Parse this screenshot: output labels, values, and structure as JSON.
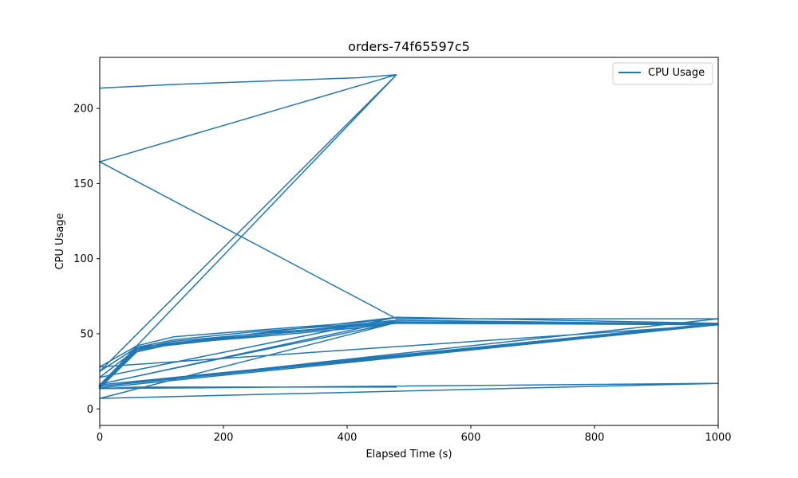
{
  "chart_data": {
    "type": "line",
    "title": "orders-74f65597c5",
    "xlabel": "Elapsed Time (s)",
    "ylabel": "CPU Usage",
    "xlim": [
      0,
      1000
    ],
    "ylim": [
      -11,
      234
    ],
    "xticks": [
      0,
      200,
      400,
      600,
      800,
      1000
    ],
    "yticks": [
      0,
      50,
      100,
      150,
      200
    ],
    "grid": false,
    "legend_position": "top-right",
    "colors": {
      "series": "#1f77b4",
      "axes": "#000000",
      "background": "#ffffff",
      "legend_border": "#cccccc"
    },
    "series": [
      {
        "name": "CPU Usage",
        "x": [
          0,
          120,
          420,
          480,
          0,
          480,
          1000,
          0,
          60,
          120,
          240,
          420,
          480,
          1000,
          0,
          60,
          120,
          240,
          420,
          480,
          1000,
          0,
          60,
          120,
          240,
          420,
          480,
          1000,
          0,
          60,
          120,
          240,
          420,
          480,
          1000,
          0,
          60,
          120,
          240,
          420,
          480,
          1000,
          0,
          60,
          480,
          0,
          60,
          480,
          0,
          60,
          480,
          0,
          120,
          480,
          0,
          1000,
          0,
          60,
          480
        ],
        "y": [
          213.5,
          216,
          220.5,
          222.5,
          164.5,
          60,
          60,
          15,
          42,
          48,
          52,
          57.5,
          61,
          57,
          16,
          41,
          46,
          51,
          56.5,
          59,
          56.5,
          16,
          40,
          45,
          49.5,
          55.5,
          58,
          56.5,
          15,
          39,
          44,
          48.5,
          55,
          57.5,
          56,
          14,
          38,
          43.5,
          47.5,
          54,
          57,
          56,
          28,
          42,
          222.5,
          25,
          41,
          61,
          21,
          40,
          59,
          16.5,
          27,
          57.5,
          7,
          17,
          13.5,
          14.5,
          14.5
        ]
      }
    ]
  }
}
